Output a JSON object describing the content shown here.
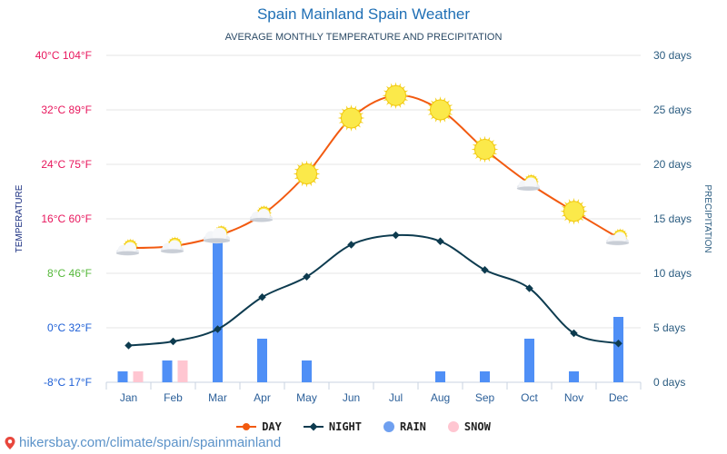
{
  "title": "Spain Mainland Spain Weather",
  "subtitle": "AVERAGE MONTHLY TEMPERATURE AND PRECIPITATION",
  "credit": "hikersbay.com/climate/spain/spainmainland",
  "colors": {
    "day": "#f25a10",
    "night": "#0d3b4f",
    "rain": "#4f8ff6",
    "snow": "#ffc6d1",
    "left_axis": "#1a2e80",
    "right_axis": "#2b5c80"
  },
  "legend": [
    {
      "label": "DAY",
      "color": "#f25a10",
      "kind": "line"
    },
    {
      "label": "NIGHT",
      "color": "#0d3b4f",
      "kind": "line"
    },
    {
      "label": "RAIN",
      "color": "#6fa0f0",
      "kind": "dot"
    },
    {
      "label": "SNOW",
      "color": "#ffc6d1",
      "kind": "dot"
    }
  ],
  "chart_data": {
    "type": "line",
    "categories": [
      "Jan",
      "Feb",
      "Mar",
      "Apr",
      "May",
      "Jun",
      "Jul",
      "Aug",
      "Sep",
      "Oct",
      "Nov",
      "Dec"
    ],
    "series": [
      {
        "name": "DAY",
        "unit": "°C",
        "values": [
          11.7,
          12.0,
          13.5,
          16.6,
          22.6,
          30.8,
          34.1,
          32.0,
          26.2,
          21.2,
          17.1,
          13.2
        ],
        "axis": "left"
      },
      {
        "name": "NIGHT",
        "unit": "°C",
        "values": [
          -2.6,
          -2.0,
          -0.2,
          4.5,
          7.5,
          12.2,
          13.6,
          12.7,
          8.5,
          5.8,
          -0.8,
          -2.3
        ],
        "axis": "left"
      },
      {
        "name": "RAIN",
        "unit": "days",
        "values": [
          1,
          2,
          13,
          4,
          2,
          0,
          0,
          1,
          1,
          4,
          1,
          6
        ],
        "axis": "right"
      },
      {
        "name": "SNOW",
        "unit": "days",
        "values": [
          1,
          2,
          0,
          0,
          0,
          0,
          0,
          0,
          0,
          0,
          0,
          0
        ],
        "axis": "right"
      }
    ],
    "weather_icons": [
      "partly-cloudy",
      "partly-cloudy",
      "cloudy-sun",
      "partly-cloudy",
      "sunny",
      "sunny",
      "sunny",
      "sunny",
      "sunny",
      "partly-cloudy",
      "sunny",
      "partly-cloudy"
    ],
    "left_axis": {
      "label": "TEMPERATURE",
      "range_c": [
        -8,
        40
      ],
      "ticks": [
        {
          "value": 40,
          "text": "40°C 104°F",
          "color": "#e8175d"
        },
        {
          "value": 32,
          "text": "32°C 89°F",
          "color": "#e8175d"
        },
        {
          "value": 24,
          "text": "24°C 75°F",
          "color": "#e8175d"
        },
        {
          "value": 16,
          "text": "16°C 60°F",
          "color": "#e8175d"
        },
        {
          "value": 8,
          "text": "8°C 46°F",
          "color": "#55b83a"
        },
        {
          "value": 0,
          "text": "0°C 32°F",
          "color": "#1d5fd6"
        },
        {
          "value": -8,
          "text": "-8°C 17°F",
          "color": "#1d5fd6"
        }
      ]
    },
    "right_axis": {
      "label": "PRECIPITATION",
      "range": [
        0,
        30
      ],
      "ticks": [
        {
          "value": 30,
          "text": "30 days"
        },
        {
          "value": 25,
          "text": "25 days"
        },
        {
          "value": 20,
          "text": "20 days"
        },
        {
          "value": 15,
          "text": "15 days"
        },
        {
          "value": 10,
          "text": "10 days"
        },
        {
          "value": 5,
          "text": "5 days"
        },
        {
          "value": 0,
          "text": "0 days"
        }
      ]
    }
  }
}
